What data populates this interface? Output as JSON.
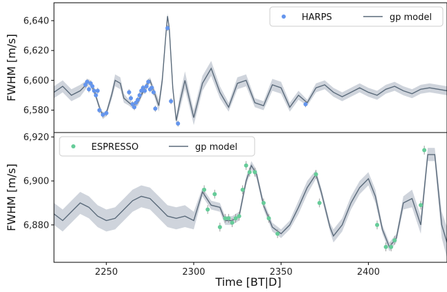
{
  "chart_data": [
    {
      "type": "line",
      "panel": "top",
      "ylabel": "FWHM [m/s]",
      "xlim": [
        2220,
        2445
      ],
      "ylim": [
        6565,
        6652
      ],
      "yticks": [
        6580,
        6600,
        6620,
        6640
      ],
      "ytick_labels": [
        "6,580",
        "6,600",
        "6,620",
        "6,640"
      ],
      "legend": {
        "placement": "top-right",
        "entries": [
          "HARPS",
          "gp model"
        ]
      },
      "colors": {
        "points": "#6495ed",
        "model": "#5a6a7a",
        "band": "#c7cdd6"
      },
      "series": [
        {
          "name": "HARPS",
          "kind": "scatter",
          "x": [
            2238,
            2239,
            2240,
            2241,
            2242,
            2243,
            2244,
            2245,
            2246,
            2248,
            2250,
            2263,
            2264,
            2265,
            2266,
            2267,
            2268,
            2269,
            2270,
            2271,
            2272,
            2273,
            2274,
            2275,
            2276,
            2277,
            2278,
            2285,
            2287,
            2291,
            2364
          ],
          "y": [
            6597,
            6599,
            6594,
            6598,
            6596,
            6593,
            6590,
            6593,
            6580,
            6577,
            6578,
            6592,
            6588,
            6584,
            6582,
            6585,
            6587,
            6590,
            6593,
            6595,
            6593,
            6596,
            6599,
            6594,
            6595,
            6592,
            6581,
            6635,
            6586,
            6571,
            6584
          ],
          "yerr": [
            2,
            2,
            2,
            2,
            2,
            2,
            2,
            2,
            2,
            2,
            2,
            2,
            2,
            2,
            2,
            2,
            2,
            2,
            2,
            2,
            2,
            2,
            2,
            2,
            2,
            2,
            2,
            2,
            2,
            2,
            2
          ]
        },
        {
          "name": "gp model",
          "kind": "line",
          "x": [
            2220,
            2225,
            2230,
            2235,
            2240,
            2243,
            2246,
            2248,
            2250,
            2253,
            2255,
            2258,
            2260,
            2263,
            2265,
            2268,
            2270,
            2273,
            2275,
            2278,
            2280,
            2282,
            2284,
            2285,
            2286,
            2288,
            2290,
            2292,
            2295,
            2298,
            2300,
            2305,
            2310,
            2315,
            2320,
            2325,
            2330,
            2335,
            2340,
            2345,
            2350,
            2355,
            2360,
            2365,
            2370,
            2375,
            2380,
            2385,
            2390,
            2395,
            2400,
            2405,
            2410,
            2415,
            2420,
            2425,
            2430,
            2435,
            2440,
            2445
          ],
          "y": [
            6592,
            6596,
            6590,
            6593,
            6599,
            6593,
            6582,
            6576,
            6578,
            6590,
            6600,
            6598,
            6588,
            6585,
            6583,
            6585,
            6590,
            6597,
            6600,
            6590,
            6583,
            6600,
            6630,
            6643,
            6635,
            6595,
            6573,
            6585,
            6600,
            6585,
            6575,
            6598,
            6608,
            6592,
            6582,
            6598,
            6600,
            6585,
            6583,
            6597,
            6595,
            6582,
            6590,
            6585,
            6595,
            6597,
            6592,
            6589,
            6592,
            6595,
            6592,
            6590,
            6594,
            6596,
            6593,
            6591,
            6594,
            6595,
            6594,
            6593
          ],
          "band": [
            4,
            4,
            4,
            4,
            2,
            2,
            2,
            2,
            2,
            3,
            4,
            4,
            3,
            2,
            2,
            2,
            2,
            2,
            2,
            3,
            4,
            4,
            3,
            2,
            2,
            3,
            3,
            5,
            6,
            5,
            5,
            5,
            5,
            4,
            3,
            4,
            4,
            3,
            3,
            4,
            4,
            3,
            3,
            2,
            3,
            3,
            3,
            3,
            3,
            3,
            3,
            3,
            3,
            3,
            3,
            3,
            3,
            3,
            3,
            3
          ]
        }
      ]
    },
    {
      "type": "line",
      "panel": "bottom",
      "ylabel": "FWHM [m/s]",
      "xlabel": "Time [BT|D]",
      "xlim": [
        2220,
        2445
      ],
      "ylim": [
        6863,
        6922
      ],
      "yticks": [
        6880,
        6900,
        6920
      ],
      "ytick_labels": [
        "6,880",
        "6,900",
        "6,920"
      ],
      "xticks": [
        2250,
        2300,
        2350,
        2400
      ],
      "xtick_labels": [
        "2250",
        "2300",
        "2350",
        "2400"
      ],
      "legend": {
        "placement": "top-left",
        "entries": [
          "ESPRESSO",
          "gp model"
        ]
      },
      "colors": {
        "points": "#66cc99",
        "model": "#5a6a7a",
        "band": "#c7cdd6"
      },
      "series": [
        {
          "name": "ESPRESSO",
          "kind": "scatter",
          "x": [
            2306,
            2308,
            2312,
            2315,
            2318,
            2320,
            2322,
            2324,
            2326,
            2328,
            2330,
            2332,
            2335,
            2340,
            2343,
            2348,
            2370,
            2372,
            2405,
            2410,
            2413,
            2415,
            2430,
            2432
          ],
          "y": [
            6896,
            6887,
            6894,
            6879,
            6883,
            6883,
            6881,
            6883,
            6884,
            6896,
            6907,
            6904,
            6904,
            6890,
            6883,
            6876,
            6903,
            6890,
            6880,
            6870,
            6870,
            6873,
            6889,
            6914
          ],
          "yerr": [
            2,
            2,
            2,
            2,
            2,
            2,
            2,
            2,
            2,
            2,
            2,
            2,
            2,
            2,
            2,
            2,
            2,
            2,
            2,
            2,
            2,
            2,
            2,
            2
          ]
        },
        {
          "name": "gp model",
          "kind": "line",
          "x": [
            2220,
            2225,
            2230,
            2235,
            2240,
            2245,
            2250,
            2255,
            2260,
            2265,
            2270,
            2275,
            2280,
            2285,
            2290,
            2295,
            2300,
            2305,
            2310,
            2315,
            2318,
            2322,
            2326,
            2330,
            2333,
            2336,
            2340,
            2345,
            2350,
            2355,
            2360,
            2365,
            2370,
            2373,
            2378,
            2380,
            2385,
            2390,
            2395,
            2400,
            2404,
            2408,
            2412,
            2416,
            2420,
            2425,
            2430,
            2434,
            2438,
            2442,
            2445
          ],
          "y": [
            6885,
            6882,
            6886,
            6890,
            6888,
            6884,
            6882,
            6883,
            6887,
            6891,
            6893,
            6892,
            6888,
            6884,
            6883,
            6884,
            6882,
            6895,
            6889,
            6888,
            6882,
            6882,
            6884,
            6900,
            6907,
            6903,
            6889,
            6879,
            6876,
            6880,
            6888,
            6897,
            6903,
            6895,
            6879,
            6875,
            6880,
            6890,
            6897,
            6901,
            6893,
            6878,
            6870,
            6874,
            6890,
            6892,
            6880,
            6912,
            6912,
            6880,
            6872
          ],
          "band": [
            5,
            5,
            5,
            5,
            5,
            5,
            5,
            5,
            5,
            5,
            5,
            5,
            5,
            5,
            5,
            5,
            4,
            2,
            2,
            2,
            2,
            2,
            2,
            2,
            2,
            2,
            2,
            2,
            2,
            2,
            3,
            3,
            2,
            2,
            2,
            3,
            3,
            3,
            3,
            3,
            3,
            2,
            2,
            2,
            3,
            4,
            4,
            3,
            3,
            6,
            7
          ]
        }
      ]
    }
  ]
}
